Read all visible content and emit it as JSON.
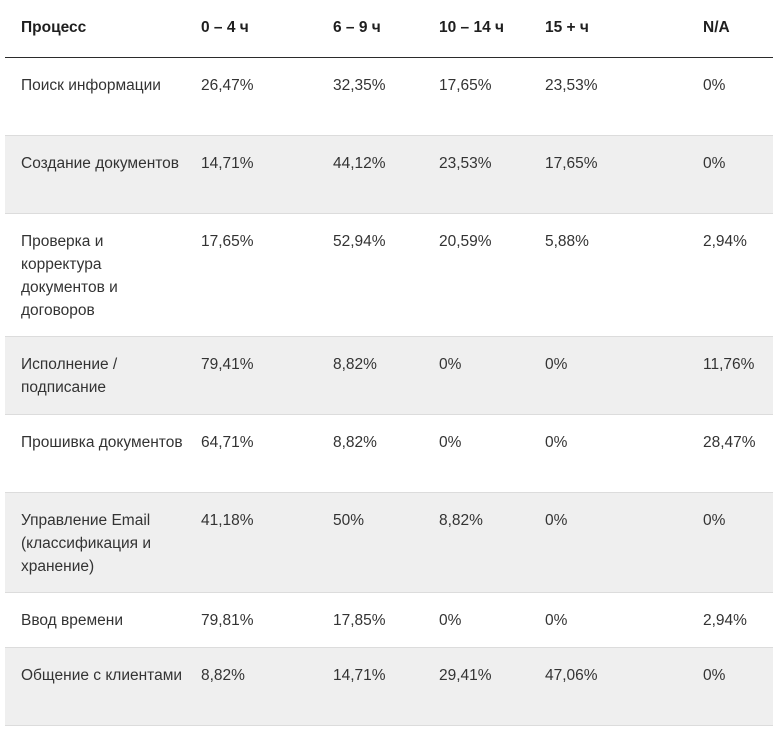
{
  "table": {
    "headers": [
      "Процесс",
      "0 – 4 ч",
      "6 – 9 ч",
      "10 – 14 ч",
      "15 + ч",
      "N/A"
    ],
    "rows": [
      {
        "process": "Поиск информации",
        "values": [
          "26,47%",
          "32,35%",
          "17,65%",
          "23,53%",
          "0%"
        ]
      },
      {
        "process": "Создание документов",
        "values": [
          "14,71%",
          "44,12%",
          "23,53%",
          "17,65%",
          "0%"
        ]
      },
      {
        "process": "Проверка и корректура документов и договоров",
        "values": [
          "17,65%",
          "52,94%",
          "20,59%",
          "5,88%",
          "2,94%"
        ]
      },
      {
        "process": "Исполнение / подписание",
        "values": [
          "79,41%",
          "8,82%",
          "0%",
          "0%",
          "11,76%"
        ]
      },
      {
        "process": "Прошивка документов",
        "values": [
          "64,71%",
          "8,82%",
          "0%",
          "0%",
          "28,47%"
        ]
      },
      {
        "process": "Управление Email (классификация и хранение)",
        "values": [
          "41,18%",
          "50%",
          "8,82%",
          "0%",
          "0%"
        ]
      },
      {
        "process": "Ввод времени",
        "values": [
          "79,81%",
          "17,85%",
          "0%",
          "0%",
          "2,94%"
        ]
      },
      {
        "process": "Общение с клиентами",
        "values": [
          "8,82%",
          "14,71%",
          "29,41%",
          "47,06%",
          "0%"
        ]
      }
    ]
  }
}
